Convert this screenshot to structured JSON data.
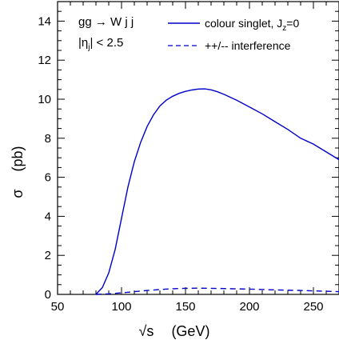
{
  "chart_data": {
    "type": "line",
    "annotation": {
      "process_pre": "gg ",
      "arrow": "→",
      "process_post": " W j j",
      "cut_pre": "|η",
      "cut_sub": "j",
      "cut_post": "| < 2.5"
    },
    "xlabel": {
      "sqrt": "√s",
      "unit": "(GeV)"
    },
    "ylabel": {
      "symbol": "σ",
      "unit": "(pb)"
    },
    "xlim": [
      50,
      270
    ],
    "ylim": [
      0,
      15
    ],
    "x_ticks": [
      50,
      100,
      150,
      200,
      250
    ],
    "y_ticks": [
      0,
      2,
      4,
      6,
      8,
      10,
      12,
      14
    ],
    "legend": {
      "position": "top-right",
      "entries": [
        {
          "pre": "colour singlet, J",
          "sub": "z",
          "post": "=0",
          "style": "solid"
        },
        {
          "pre": "++/-- interference",
          "sub": "",
          "post": "",
          "style": "dashed"
        }
      ]
    },
    "colors": {
      "series": "#0000cc",
      "axes": "#000000"
    },
    "series": [
      {
        "style": "solid",
        "x": [
          80,
          85,
          90,
          95,
          100,
          105,
          110,
          115,
          120,
          125,
          130,
          135,
          140,
          145,
          150,
          155,
          160,
          165,
          170,
          175,
          180,
          190,
          200,
          210,
          220,
          230,
          240,
          250,
          260,
          270
        ],
        "y": [
          0.0,
          0.35,
          1.1,
          2.3,
          3.9,
          5.5,
          6.8,
          7.8,
          8.6,
          9.2,
          9.65,
          9.95,
          10.15,
          10.3,
          10.4,
          10.47,
          10.52,
          10.53,
          10.48,
          10.38,
          10.25,
          9.95,
          9.6,
          9.25,
          8.85,
          8.45,
          8.0,
          7.7,
          7.3,
          6.9
        ]
      },
      {
        "style": "dashed",
        "x": [
          80,
          90,
          100,
          110,
          120,
          130,
          140,
          150,
          160,
          170,
          180,
          200,
          220,
          240,
          260,
          270
        ],
        "y": [
          0.0,
          0.03,
          0.08,
          0.14,
          0.2,
          0.25,
          0.29,
          0.31,
          0.32,
          0.31,
          0.3,
          0.27,
          0.23,
          0.2,
          0.16,
          0.14
        ]
      }
    ]
  }
}
